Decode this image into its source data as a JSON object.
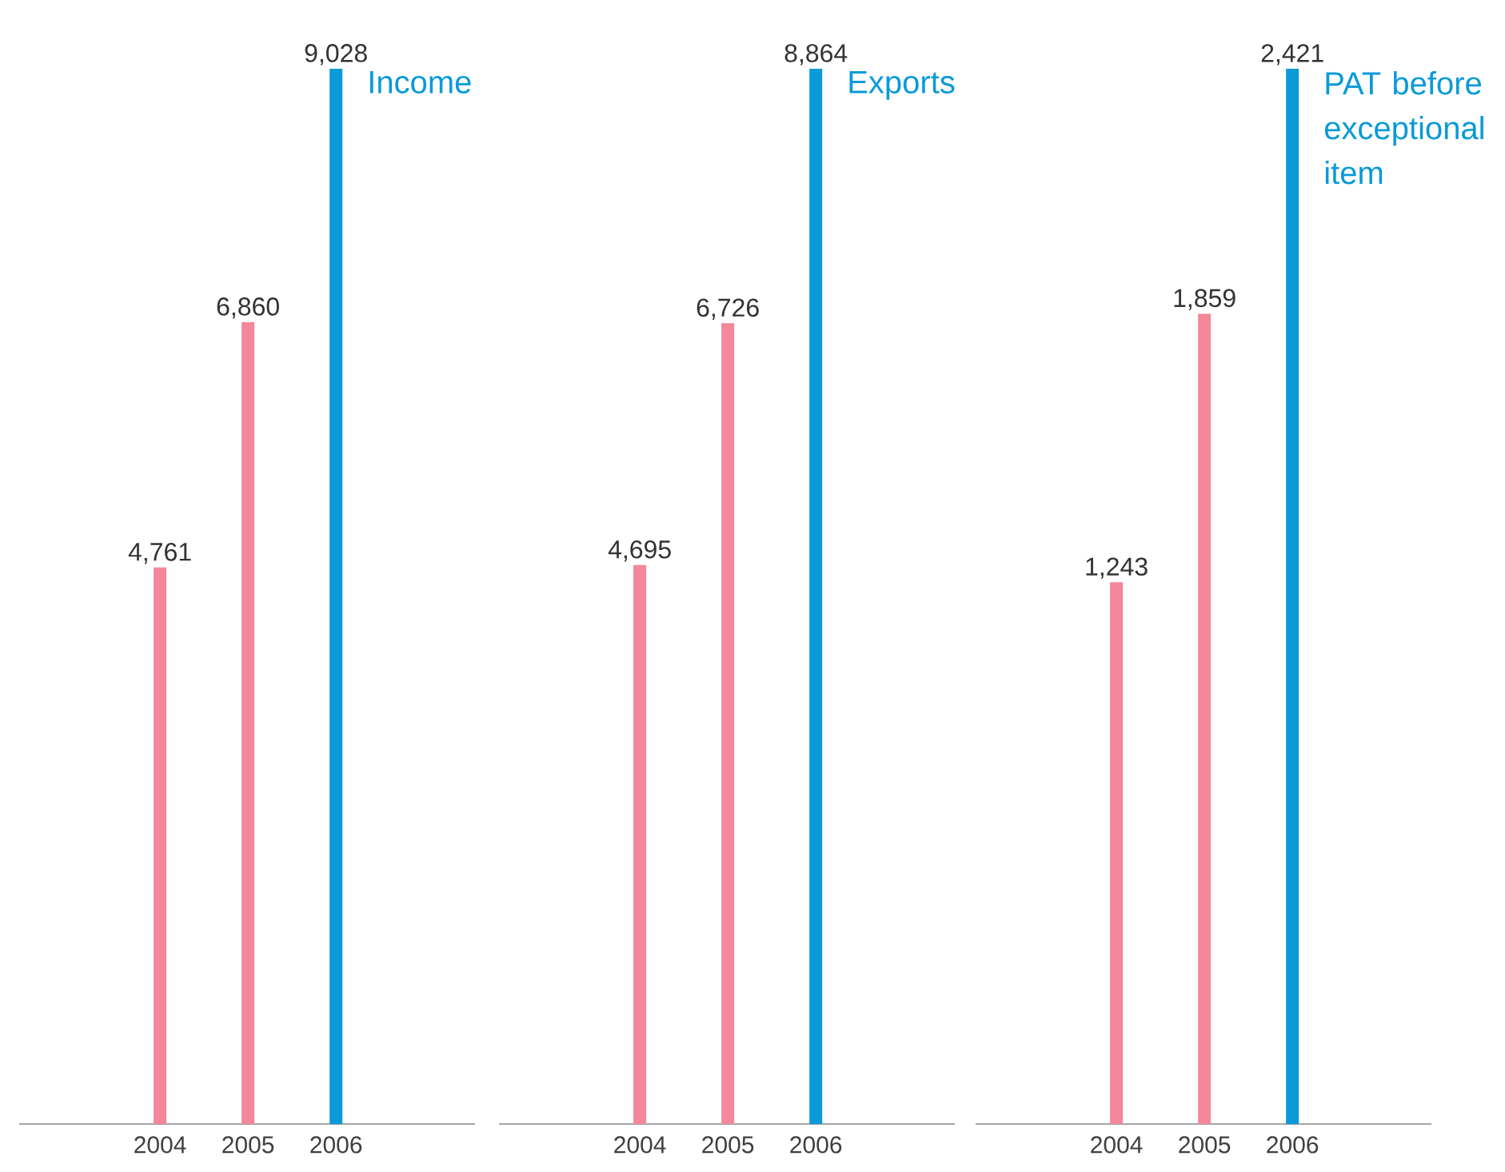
{
  "chart_data": [
    {
      "type": "bar",
      "title": "Income",
      "categories": [
        "2004",
        "2005",
        "2006"
      ],
      "values": [
        4761,
        6860,
        9028
      ],
      "value_labels": [
        "4,761",
        "6,860",
        "9,028"
      ],
      "colors": [
        "#f4879a",
        "#f4879a",
        "#0a9ad8"
      ],
      "tick_labels": "x"
    },
    {
      "type": "bar",
      "title": "Exports",
      "categories": [
        "2004",
        "2005",
        "2006"
      ],
      "values": [
        4695,
        6726,
        8864
      ],
      "value_labels": [
        "4,695",
        "6,726",
        "8,864"
      ],
      "colors": [
        "#f4879a",
        "#f4879a",
        "#0a9ad8"
      ],
      "tick_labels": "x"
    },
    {
      "type": "bar",
      "title": "PAT before exceptional item",
      "categories": [
        "2004",
        "2005",
        "2006"
      ],
      "values": [
        1243,
        1859,
        2421
      ],
      "value_labels": [
        "1,243",
        "1,859",
        "2,421"
      ],
      "colors": [
        "#f4879a",
        "#f4879a",
        "#0a9ad8"
      ],
      "tick_labels": "x"
    }
  ]
}
